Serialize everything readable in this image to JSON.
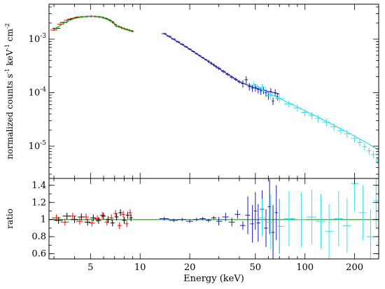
{
  "chart_data": [
    {
      "type": "line",
      "panel": "top",
      "ylabel_parts": [
        "normalized counts s",
        "-1",
        " keV",
        "-1",
        " cm",
        "-2"
      ],
      "yscale": "log",
      "ylim": [
        2.5e-06,
        0.0045
      ],
      "y_ticks": [
        {
          "v": 1e-05,
          "m": "10",
          "e": "-5"
        },
        {
          "v": 0.0001,
          "m": "10",
          "e": "-4"
        },
        {
          "v": 0.001,
          "m": "10",
          "e": "-3"
        }
      ],
      "series": [
        {
          "color": "#ff0000",
          "style": "data",
          "x": [
            3.0,
            3.3,
            3.6,
            3.9,
            4.2,
            4.5,
            4.8,
            5.1,
            5.4,
            5.7,
            6.0,
            6.3,
            6.6,
            6.9,
            7.2,
            7.5,
            7.8,
            8.1,
            8.4,
            8.7,
            9.0
          ],
          "y": [
            0.00148,
            0.0019,
            0.00225,
            0.00244,
            0.00258,
            0.00262,
            0.00266,
            0.00267,
            0.00265,
            0.0026,
            0.0025,
            0.00238,
            0.00221,
            0.002,
            0.00175,
            0.0017,
            0.0016,
            0.00155,
            0.0015,
            0.00145,
            0.0014
          ]
        },
        {
          "color": "#000000",
          "style": "data",
          "x": [
            3.1,
            3.45,
            3.8,
            4.1,
            4.4,
            4.7,
            5.0,
            5.3,
            5.6,
            5.9,
            6.2,
            6.5,
            6.8,
            7.1,
            7.4,
            7.7,
            8.0,
            8.3,
            8.6,
            8.9
          ],
          "y": [
            0.0016,
            0.00205,
            0.00236,
            0.00252,
            0.0026,
            0.00264,
            0.00267,
            0.00266,
            0.00262,
            0.00255,
            0.00243,
            0.00228,
            0.0021,
            0.00186,
            0.00172,
            0.00165,
            0.00158,
            0.00152,
            0.00147,
            0.00142
          ]
        },
        {
          "color": "#00c800",
          "style": "model",
          "x": [
            3.0,
            3.5,
            4.0,
            4.5,
            5.0,
            5.5,
            6.0,
            6.5,
            7.0,
            7.3,
            7.5,
            8.0,
            8.5,
            9.0
          ],
          "y": [
            0.00152,
            0.00205,
            0.00245,
            0.00262,
            0.00267,
            0.00264,
            0.0025,
            0.00226,
            0.00192,
            0.00173,
            0.00168,
            0.00158,
            0.00149,
            0.00141
          ]
        },
        {
          "color": "#1a1aa8",
          "style": "data",
          "x": [
            14,
            15,
            16,
            17,
            18,
            19,
            20,
            21,
            22,
            23,
            24,
            25,
            26,
            27,
            28,
            29,
            30,
            32,
            34,
            36,
            38,
            40,
            42,
            44,
            46,
            48,
            50,
            52,
            54,
            56,
            58,
            60,
            62,
            64,
            66,
            68
          ],
          "y": [
            0.00127,
            0.00113,
            0.001,
            0.00089,
            0.0008,
            0.00072,
            0.00065,
            0.00059,
            0.000535,
            0.00049,
            0.00045,
            0.000415,
            0.000385,
            0.000355,
            0.00033,
            0.000305,
            0.000285,
            0.00025,
            0.00022,
            0.000195,
            0.000178,
            0.00016,
            0.000148,
            0.000175,
            0.00013,
            0.000122,
            0.000125,
            0.000115,
            0.000108,
            0.000112,
            0.0001,
            8.8e-05,
            0.000105,
            7e-05,
            0.0001,
            8.5e-05
          ]
        },
        {
          "color": "#1a1aa8",
          "style": "model",
          "x": [
            14,
            20,
            30,
            40,
            50,
            60,
            70
          ],
          "y": [
            0.00127,
            0.00065,
            0.000285,
            0.00016,
            0.000122,
            0.000105,
            9.5e-05
          ]
        },
        {
          "color": "#33e0f0",
          "style": "data",
          "x": [
            49,
            55,
            62,
            70,
            80,
            90,
            100,
            110,
            120,
            135,
            150,
            165,
            180,
            200,
            215,
            230,
            245,
            260,
            275
          ],
          "y": [
            0.00014,
            0.000125,
            8.8e-05,
            7.8e-05,
            6.2e-05,
            5.2e-05,
            4.3e-05,
            3.8e-05,
            3.3e-05,
            2.8e-05,
            2.3e-05,
            1.95e-05,
            1.7e-05,
            1.4e-05,
            1.18e-05,
            9.8e-06,
            8.2e-06,
            7e-06,
            5.5e-06
          ]
        },
        {
          "color": "#33e0f0",
          "style": "model",
          "x": [
            49,
            60,
            70,
            80,
            90,
            100,
            120,
            150,
            180,
            200,
            230,
            260,
            280
          ],
          "y": [
            0.00014,
            9.8e-05,
            7.8e-05,
            6.4e-05,
            5.4e-05,
            4.6e-05,
            3.5e-05,
            2.45e-05,
            1.85e-05,
            1.55e-05,
            1.22e-05,
            9.7e-06,
            8.5e-06
          ]
        }
      ]
    },
    {
      "type": "scatter",
      "panel": "bottom",
      "xlabel": "Energy (keV)",
      "ylabel": "ratio",
      "xscale": "log",
      "xlim": [
        2.8,
        280
      ],
      "ylim": [
        0.54,
        1.48
      ],
      "x_ticks": [
        {
          "v": 5,
          "l": "5"
        },
        {
          "v": 10,
          "l": "10"
        },
        {
          "v": 20,
          "l": "20"
        },
        {
          "v": 50,
          "l": "50"
        },
        {
          "v": 100,
          "l": "100"
        },
        {
          "v": 200,
          "l": "200"
        }
      ],
      "y_ticks": [
        {
          "v": 0.6,
          "l": "0.6"
        },
        {
          "v": 0.8,
          "l": "0.8"
        },
        {
          "v": 1,
          "l": "1"
        },
        {
          "v": 1.2,
          "l": "1.2"
        },
        {
          "v": 1.4,
          "l": "1.4"
        }
      ],
      "reference_line": 1,
      "series": [
        {
          "color": "#ff0000",
          "x": [
            3.1,
            3.5,
            3.9,
            4.3,
            4.7,
            5.1,
            5.5,
            5.9,
            6.3,
            6.7,
            7.1,
            7.5,
            7.9,
            8.3,
            8.7
          ],
          "y": [
            1.02,
            0.97,
            1.04,
            0.98,
            1.03,
            0.96,
            1.01,
            1.05,
            0.97,
            1.02,
            1.07,
            0.93,
            1.06,
            0.95,
            1.08
          ]
        },
        {
          "color": "#000000",
          "x": [
            3.2,
            3.6,
            4.0,
            4.4,
            4.8,
            5.2,
            5.6,
            6.0,
            6.4,
            6.8,
            7.2,
            7.6,
            8.0,
            8.4,
            8.8
          ],
          "y": [
            0.99,
            1.04,
            1.0,
            1.03,
            0.97,
            1.02,
            0.99,
            1.04,
            1.0,
            0.96,
            1.03,
            1.08,
            0.99,
            1.05,
            1.02
          ]
        },
        {
          "color": "#1a1aa8",
          "x": [
            14,
            16,
            18,
            20,
            22,
            24,
            26,
            28,
            30,
            33,
            36,
            39,
            42,
            45,
            48,
            50,
            52,
            55,
            58,
            61,
            64,
            67,
            70
          ],
          "y": [
            1.01,
            0.99,
            1.0,
            0.98,
            1.0,
            1.01,
            0.99,
            1.02,
            0.98,
            1.03,
            0.97,
            1.06,
            0.93,
            1.05,
            0.95,
            1.1,
            0.96,
            1.12,
            0.9,
            1.15,
            0.85,
            1.08,
            0.92
          ]
        },
        {
          "color": "#33e0f0",
          "x": [
            55,
            62,
            70,
            80,
            95,
            110,
            125,
            140,
            160,
            180,
            200,
            225,
            250,
            270
          ],
          "y": [
            1.02,
            0.97,
            0.92,
            1.01,
            1.0,
            1.03,
            0.98,
            0.86,
            1.01,
            0.93,
            1.42,
            1.08,
            0.8,
            1.22
          ]
        }
      ]
    }
  ]
}
